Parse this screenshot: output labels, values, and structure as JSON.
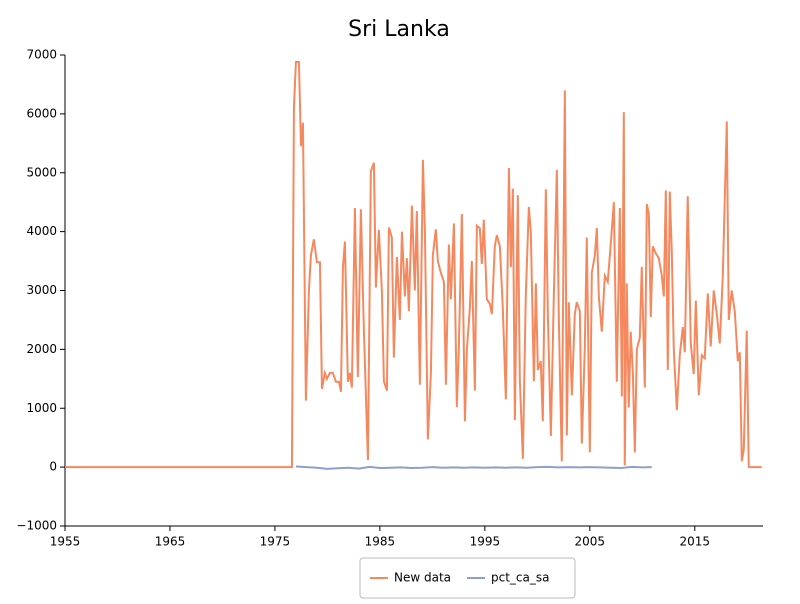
{
  "chart_data": {
    "type": "line",
    "title": "Sri Lanka",
    "xlim": [
      1955,
      2021.5
    ],
    "xticks": [
      1955,
      1965,
      1975,
      1985,
      1995,
      2005,
      2015
    ],
    "ylim": [
      -1000,
      7000
    ],
    "yticks": [
      {
        "value": -1000,
        "label": "−1000"
      },
      0,
      1000,
      2000,
      3000,
      4000,
      5000,
      6000,
      7000
    ],
    "legend": "bottom",
    "series": [
      {
        "name": "New data",
        "color": "#f4895f",
        "x": [
          1955,
          1976.62,
          1976.81,
          1977.0,
          1977.29,
          1977.48,
          1977.67,
          1977.95,
          1978.24,
          1978.43,
          1978.71,
          1979.0,
          1979.29,
          1979.48,
          1979.76,
          1979.95,
          1980.24,
          1980.52,
          1980.81,
          1981.1,
          1981.29,
          1981.48,
          1981.67,
          1981.95,
          1982.14,
          1982.33,
          1982.62,
          1982.9,
          1983.19,
          1983.48,
          1983.86,
          1984.14,
          1984.43,
          1984.62,
          1984.9,
          1985.19,
          1985.38,
          1985.67,
          1985.86,
          1986.14,
          1986.33,
          1986.62,
          1986.9,
          1987.1,
          1987.38,
          1987.57,
          1987.76,
          1988.05,
          1988.33,
          1988.52,
          1988.81,
          1989.1,
          1989.29,
          1989.57,
          1989.86,
          1990.05,
          1990.33,
          1990.52,
          1990.81,
          1991.1,
          1991.29,
          1991.57,
          1991.76,
          1992.05,
          1992.33,
          1992.52,
          1992.81,
          1993.1,
          1993.29,
          1993.57,
          1993.76,
          1994.05,
          1994.24,
          1994.52,
          1994.71,
          1994.9,
          1995.19,
          1995.48,
          1995.67,
          1995.95,
          1996.14,
          1996.43,
          1996.71,
          1997.0,
          1997.29,
          1997.48,
          1997.67,
          1997.86,
          1998.14,
          1998.33,
          1998.62,
          1998.9,
          1999.19,
          1999.38,
          1999.67,
          1999.86,
          2000.05,
          2000.33,
          2000.52,
          2000.81,
          2001.0,
          2001.29,
          2001.57,
          2001.86,
          2002.05,
          2002.33,
          2002.62,
          2002.81,
          2003.0,
          2003.29,
          2003.57,
          2003.76,
          2004.05,
          2004.24,
          2004.52,
          2004.71,
          2005.0,
          2005.19,
          2005.48,
          2005.67,
          2005.86,
          2006.14,
          2006.43,
          2006.71,
          2007.0,
          2007.29,
          2007.57,
          2007.86,
          2008.05,
          2008.24,
          2008.33,
          2008.52,
          2008.71,
          2008.9,
          2009.1,
          2009.29,
          2009.48,
          2009.76,
          2009.95,
          2010.24,
          2010.43,
          2010.62,
          2010.81,
          2011.0,
          2011.29,
          2011.57,
          2011.86,
          2012.05,
          2012.24,
          2012.43,
          2012.62,
          2012.81,
          2013.0,
          2013.29,
          2013.57,
          2013.86,
          2014.05,
          2014.33,
          2014.62,
          2014.9,
          2015.1,
          2015.38,
          2015.67,
          2015.95,
          2016.24,
          2016.52,
          2016.81,
          2017.1,
          2017.38,
          2017.67,
          2018.05,
          2018.24,
          2018.52,
          2018.81,
          2019.1,
          2019.29,
          2019.48,
          2019.67,
          2019.95,
          2020.14,
          2020.43,
          2021.38
        ],
        "values": [
          0,
          0,
          6100,
          6880,
          6880,
          5450,
          5850,
          1130,
          3000,
          3600,
          3870,
          3480,
          3480,
          1330,
          1600,
          1500,
          1600,
          1600,
          1450,
          1450,
          1280,
          3400,
          3830,
          1450,
          1600,
          1350,
          4400,
          1530,
          4380,
          2300,
          120,
          5030,
          5170,
          3050,
          4030,
          3000,
          1460,
          1300,
          4070,
          3900,
          1860,
          3570,
          2500,
          4000,
          2900,
          3550,
          2650,
          4440,
          3000,
          4350,
          1400,
          5220,
          4000,
          470,
          1600,
          3600,
          4040,
          3500,
          3300,
          3150,
          1400,
          3780,
          2850,
          4140,
          1020,
          2000,
          4300,
          780,
          2000,
          2700,
          3500,
          1300,
          4100,
          4060,
          3450,
          4200,
          2850,
          2770,
          2600,
          3750,
          3940,
          3750,
          2700,
          1150,
          5080,
          3400,
          4730,
          800,
          4620,
          1500,
          140,
          2900,
          4420,
          4000,
          1460,
          3120,
          1650,
          1800,
          780,
          4720,
          2600,
          530,
          2900,
          5050,
          2500,
          100,
          6400,
          540,
          2800,
          1220,
          2600,
          2800,
          2650,
          400,
          2000,
          3900,
          250,
          3300,
          3600,
          4060,
          2900,
          2300,
          3250,
          3150,
          3800,
          4500,
          1450,
          4400,
          1200,
          6030,
          30,
          3120,
          1010,
          2300,
          1600,
          250,
          2000,
          2200,
          3400,
          1350,
          4470,
          4300,
          2550,
          3750,
          3630,
          3550,
          3250,
          2900,
          4700,
          1650,
          4680,
          3650,
          2000,
          970,
          1900,
          2380,
          1950,
          4600,
          2100,
          1580,
          2830,
          1220,
          1900,
          1850,
          2950,
          2050,
          3000,
          2600,
          2100,
          3250,
          5870,
          2500,
          3000,
          2650,
          1800,
          1950,
          100,
          300,
          2320,
          0,
          0,
          0
        ]
      },
      {
        "name": "pct_ca_sa",
        "color": "#8da0cb",
        "x": [
          1977,
          1978,
          1979,
          1980,
          1981,
          1982,
          1983,
          1984,
          1985,
          1986,
          1987,
          1988,
          1989,
          1990,
          1991,
          1992,
          1993,
          1994,
          1995,
          1996,
          1997,
          1998,
          1999,
          2000,
          2001,
          2002,
          2003,
          2004,
          2005,
          2006,
          2007,
          2008,
          2009,
          2010,
          2010.9
        ],
        "values": [
          10,
          0,
          -10,
          -30,
          -20,
          -10,
          -25,
          5,
          -15,
          -10,
          -5,
          -15,
          -10,
          0,
          -10,
          -5,
          -10,
          -5,
          -10,
          -5,
          -10,
          -5,
          -10,
          0,
          5,
          -5,
          0,
          -5,
          0,
          -5,
          -10,
          -15,
          5,
          -5,
          0
        ]
      }
    ]
  }
}
